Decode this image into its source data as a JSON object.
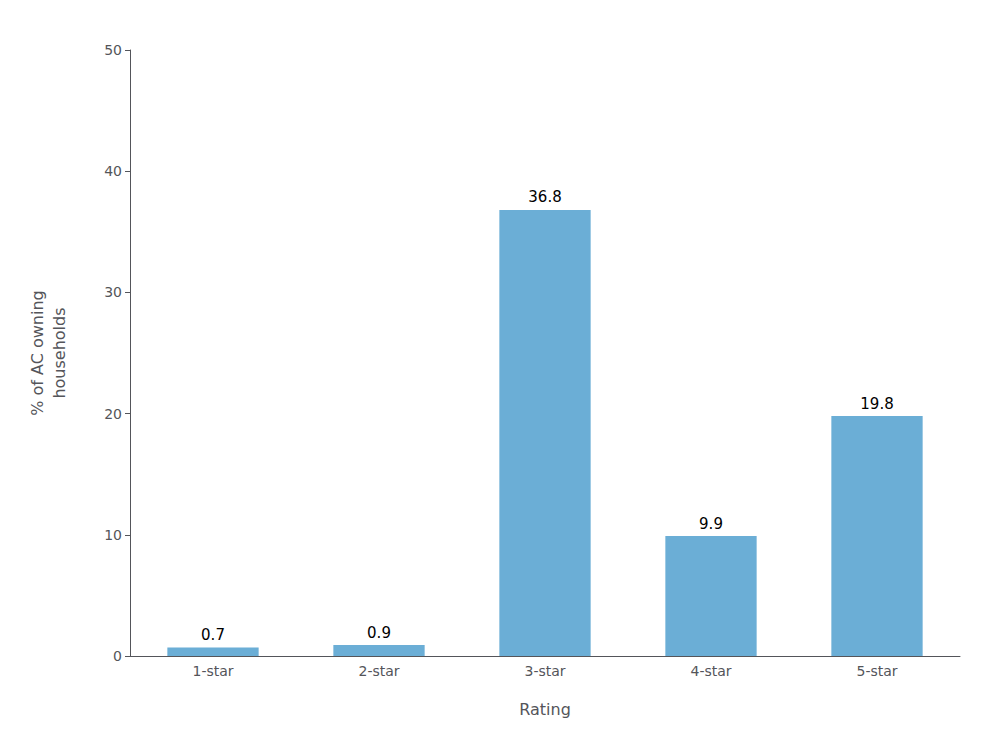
{
  "chart_data": {
    "type": "bar",
    "categories": [
      "1-star",
      "2-star",
      "3-star",
      "4-star",
      "5-star"
    ],
    "values": [
      0.7,
      0.9,
      36.8,
      9.9,
      19.8
    ],
    "color": "#6baed6",
    "xlabel": "Rating",
    "ylabel": "% of AC owning\nhouseholds",
    "ylim": [
      0,
      50
    ],
    "yticks": [
      0,
      10,
      20,
      30,
      40,
      50
    ],
    "grid": false,
    "data_labels": true
  }
}
